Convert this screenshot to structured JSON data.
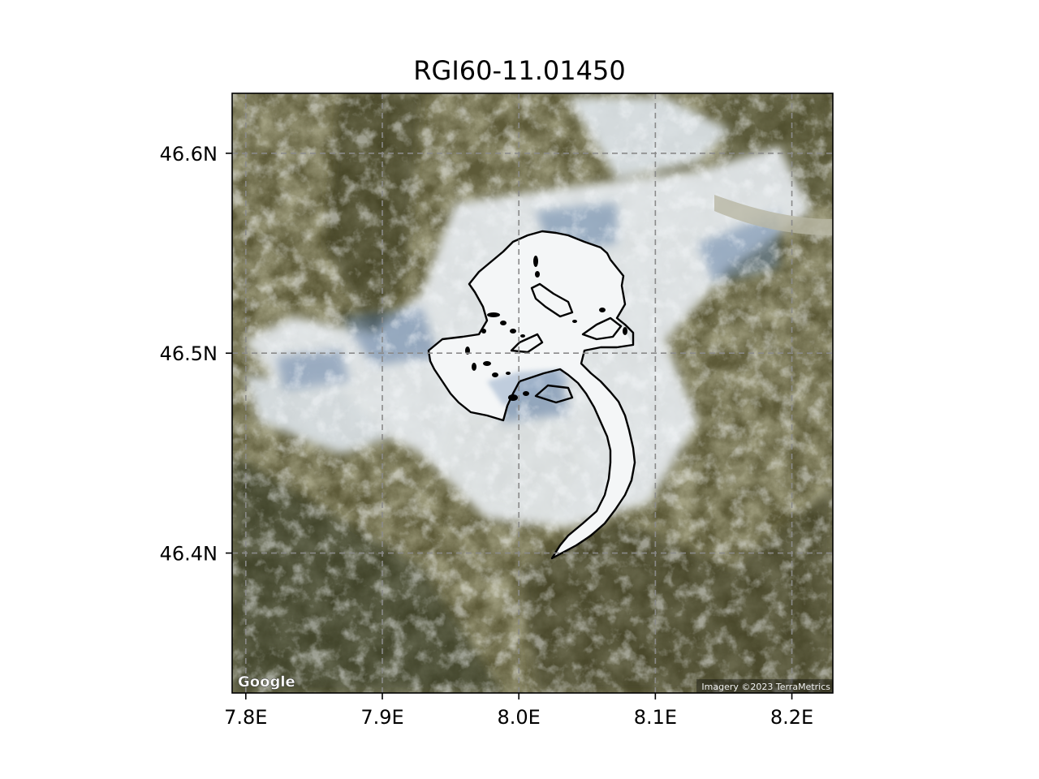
{
  "title": "RGI60-11.01450",
  "map": {
    "lon_range": [
      7.79,
      8.23
    ],
    "lat_range": [
      46.33,
      46.63
    ],
    "x_ticks": [
      {
        "value": 7.8,
        "label": "7.8E"
      },
      {
        "value": 7.9,
        "label": "7.9E"
      },
      {
        "value": 8.0,
        "label": "8.0E"
      },
      {
        "value": 8.1,
        "label": "8.1E"
      },
      {
        "value": 8.2,
        "label": "8.2E"
      }
    ],
    "y_ticks": [
      {
        "value": 46.6,
        "label": "46.6N"
      },
      {
        "value": 46.5,
        "label": "46.5N"
      },
      {
        "value": 46.4,
        "label": "46.4N"
      }
    ],
    "gridlines": "dashed",
    "basemap": "satellite imagery",
    "outline_color": "#000000",
    "logo_text": "Google",
    "attribution": "Imagery ©2023 TerraMetrics"
  }
}
